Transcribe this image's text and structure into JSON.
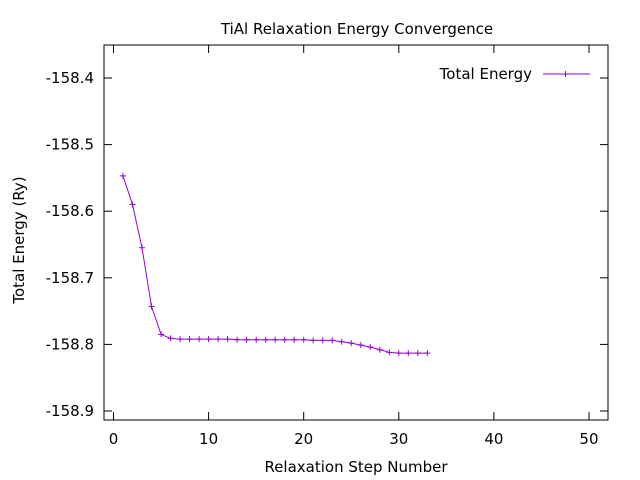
{
  "chart_data": {
    "type": "line",
    "title": "TiAl Relaxation Energy Convergence",
    "xlabel": "Relaxation Step Number",
    "ylabel": "Total Energy (Ry)",
    "xlim": [
      -1,
      52
    ],
    "ylim": [
      -158.9,
      -158.4
    ],
    "xticks": [
      0,
      10,
      20,
      30,
      40,
      50
    ],
    "yticks": [
      -158.4,
      -158.5,
      -158.6,
      -158.7,
      -158.8,
      -158.9
    ],
    "ytick_labels": [
      "-158.4",
      "-158.5",
      "-158.6",
      "-158.7",
      "-158.8",
      "-158.9"
    ],
    "grid": false,
    "legend_position": "top-right",
    "series": [
      {
        "name": "Total Energy",
        "color": "#9400d3",
        "marker": "plus",
        "x": [
          1,
          2,
          3,
          4,
          5,
          6,
          7,
          8,
          9,
          10,
          11,
          12,
          13,
          14,
          15,
          16,
          17,
          18,
          19,
          20,
          21,
          22,
          23,
          24,
          25,
          26,
          27,
          28,
          29,
          30,
          31,
          32,
          33
        ],
        "y": [
          -158.547,
          -158.59,
          -158.655,
          -158.743,
          -158.785,
          -158.791,
          -158.792,
          -158.792,
          -158.792,
          -158.792,
          -158.792,
          -158.792,
          -158.793,
          -158.793,
          -158.793,
          -158.793,
          -158.793,
          -158.793,
          -158.793,
          -158.793,
          -158.794,
          -158.794,
          -158.794,
          -158.796,
          -158.798,
          -158.801,
          -158.804,
          -158.808,
          -158.812,
          -158.813,
          -158.813,
          -158.813,
          -158.813
        ]
      }
    ]
  }
}
